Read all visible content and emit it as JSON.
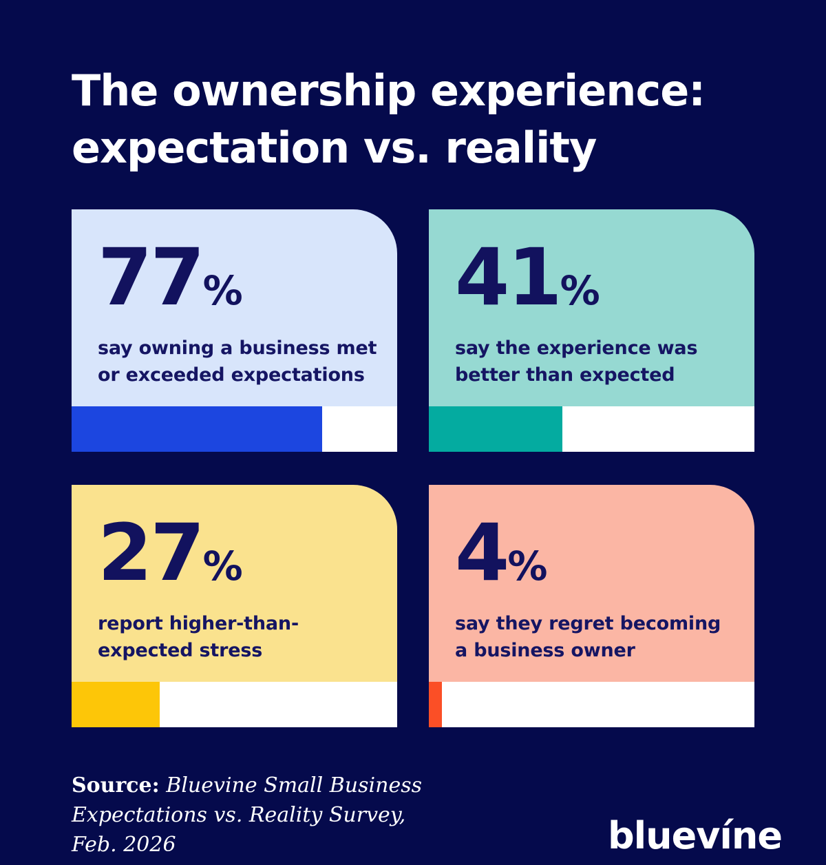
{
  "colors": {
    "background": "#050A4C",
    "title_text": "#FFFFFF",
    "stat_text": "#12125E",
    "bar_track": "#FFFFFF"
  },
  "title": {
    "lines": [
      "The ownership experience:",
      "expectation vs. reality"
    ]
  },
  "cards": [
    {
      "value": "77",
      "percent_sign": "%",
      "fill_percent": 77,
      "description": "say owning a business met or exceeded expectations",
      "card_color": "#D8E5FB",
      "bar_color": "#1C46E0"
    },
    {
      "value": "41",
      "percent_sign": "%",
      "fill_percent": 41,
      "description": "say the experience was better than expected",
      "card_color": "#96D9D2",
      "bar_color": "#04ABA0"
    },
    {
      "value": "27",
      "percent_sign": "%",
      "fill_percent": 27,
      "description": "report higher-than-expected stress",
      "card_color": "#FAE28E",
      "bar_color": "#FDC608"
    },
    {
      "value": "4",
      "percent_sign": "%",
      "fill_percent": 4,
      "description": "say they regret becoming a business owner",
      "card_color": "#FBB6A4",
      "bar_color": "#FB4F26"
    }
  ],
  "source": {
    "label": "Source:",
    "text": "Bluevine Small Business Expectations vs. Reality Survey, Feb. 2026"
  },
  "logo": {
    "text": "bluevíne"
  },
  "chart_data": {
    "type": "bar",
    "title": "The ownership experience: expectation vs. reality",
    "categories": [
      "say owning a business met or exceeded expectations",
      "say the experience was better than expected",
      "report higher-than-expected stress",
      "say they regret becoming a business owner"
    ],
    "values": [
      77,
      41,
      27,
      4
    ],
    "unit": "%",
    "xlim": [
      0,
      100
    ],
    "grid": false,
    "legend": false,
    "source": "Bluevine Small Business Expectations vs. Reality Survey, Feb. 2026"
  }
}
